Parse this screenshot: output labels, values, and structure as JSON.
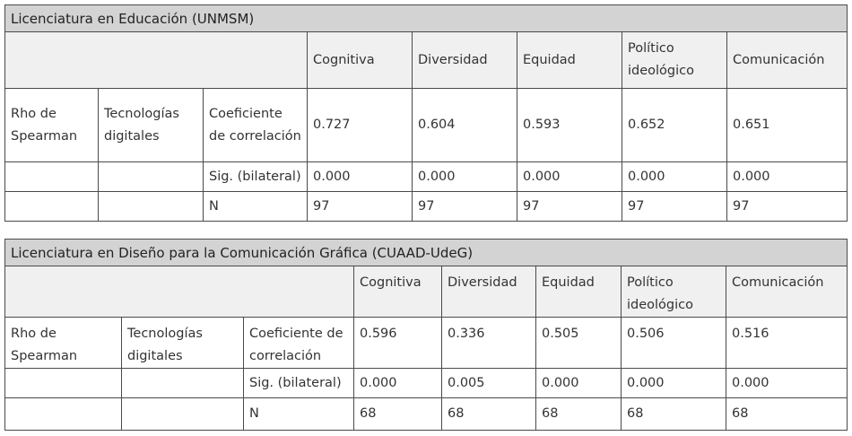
{
  "tables": [
    {
      "caption": "Licenciatura en Educación (UNMSM)",
      "columns": [
        "Cognitiva",
        "Diversidad",
        "Equidad",
        "Político ideológico",
        "Comunicación"
      ],
      "row_stub": "Rho de Spearman",
      "row_group": "Tecnologías digitales",
      "rows": [
        {
          "label": "Coeficiente de correlación",
          "values": [
            "0.727",
            "0.604",
            "0.593",
            "0.652",
            "0.651"
          ]
        },
        {
          "label": "Sig. (bilateral)",
          "values": [
            "0.000",
            "0.000",
            "0.000",
            "0.000",
            "0.000"
          ]
        },
        {
          "label": "N",
          "values": [
            "97",
            "97",
            "97",
            "97",
            "97"
          ]
        }
      ]
    },
    {
      "caption": "Licenciatura en Diseño para la Comunicación Gráfica (CUAAD-UdeG)",
      "columns": [
        "Cognitiva",
        "Diversidad",
        "Equidad",
        "Político ideológico",
        "Comunicación"
      ],
      "row_stub": "Rho de Spearman",
      "row_group": "Tecnologías digitales",
      "rows": [
        {
          "label": "Coeficiente de correlación",
          "values": [
            "0.596",
            "0.336",
            "0.505",
            "0.506",
            "0.516"
          ]
        },
        {
          "label": "Sig. (bilateral)",
          "values": [
            "0.000",
            "0.005",
            "0.000",
            "0.000",
            "0.000"
          ]
        },
        {
          "label": "N",
          "values": [
            "68",
            "68",
            "68",
            "68",
            "68"
          ]
        }
      ]
    }
  ]
}
